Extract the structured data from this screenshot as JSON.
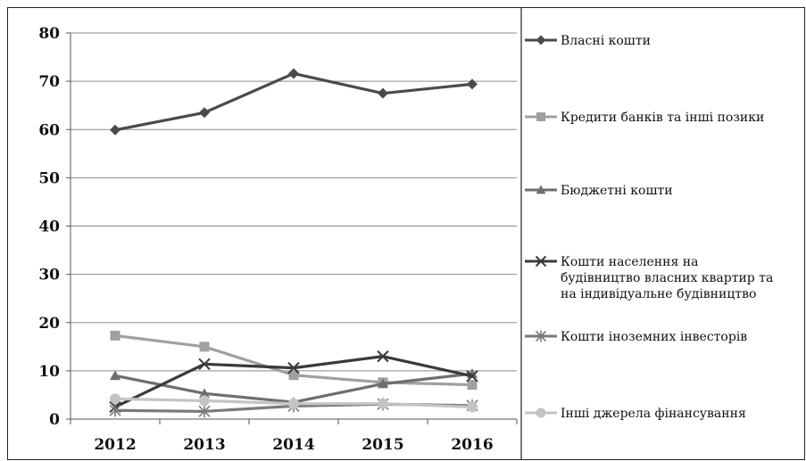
{
  "chart_data": {
    "type": "line",
    "title": "",
    "xlabel": "",
    "ylabel": "",
    "x": [
      "2012",
      "2013",
      "2014",
      "2015",
      "2016"
    ],
    "ylim": [
      0,
      80
    ],
    "yticks": [
      "0",
      "10",
      "20",
      "30",
      "40",
      "50",
      "60",
      "70",
      "80"
    ],
    "grid": "horizontal",
    "legend_position": "right",
    "series": [
      {
        "name": "Власні кошти",
        "label_lines": [
          "Власні кошти"
        ],
        "values": [
          59.9,
          63.5,
          71.6,
          67.5,
          69.4
        ],
        "color": "#4a4a4a",
        "marker": "diamond"
      },
      {
        "name": "Кредити банків та інші позики",
        "label_lines": [
          "Кредити банків та інші позики"
        ],
        "values": [
          17.3,
          15.0,
          9.1,
          7.6,
          7.1
        ],
        "color": "#a0a0a0",
        "marker": "square"
      },
      {
        "name": "Бюджетні кошти",
        "label_lines": [
          "Бюджетні кошти"
        ],
        "values": [
          9.0,
          5.3,
          3.5,
          7.3,
          9.4
        ],
        "color": "#6e6e6e",
        "marker": "triangle"
      },
      {
        "name": "Кошти населення на будівництво власних квартир та на індивідуальне будівництво",
        "label_lines": [
          "Кошти населення на",
          "будівництво власних квартир та",
          "на індивідуальне будівництво"
        ],
        "values": [
          2.5,
          11.4,
          10.6,
          13.0,
          8.9
        ],
        "color": "#3a3a3a",
        "marker": "x"
      },
      {
        "name": "Кошти іноземних інвесторів",
        "label_lines": [
          "Кошти іноземних інвесторів"
        ],
        "values": [
          1.8,
          1.6,
          2.7,
          3.1,
          2.8
        ],
        "color": "#7a7a7a",
        "marker": "asterisk"
      },
      {
        "name": "Інші джерела фінансування",
        "label_lines": [
          "Інші джерела фінансування"
        ],
        "values": [
          4.2,
          3.8,
          3.2,
          3.2,
          2.5
        ],
        "color": "#c4c4c4",
        "marker": "circle"
      }
    ]
  }
}
